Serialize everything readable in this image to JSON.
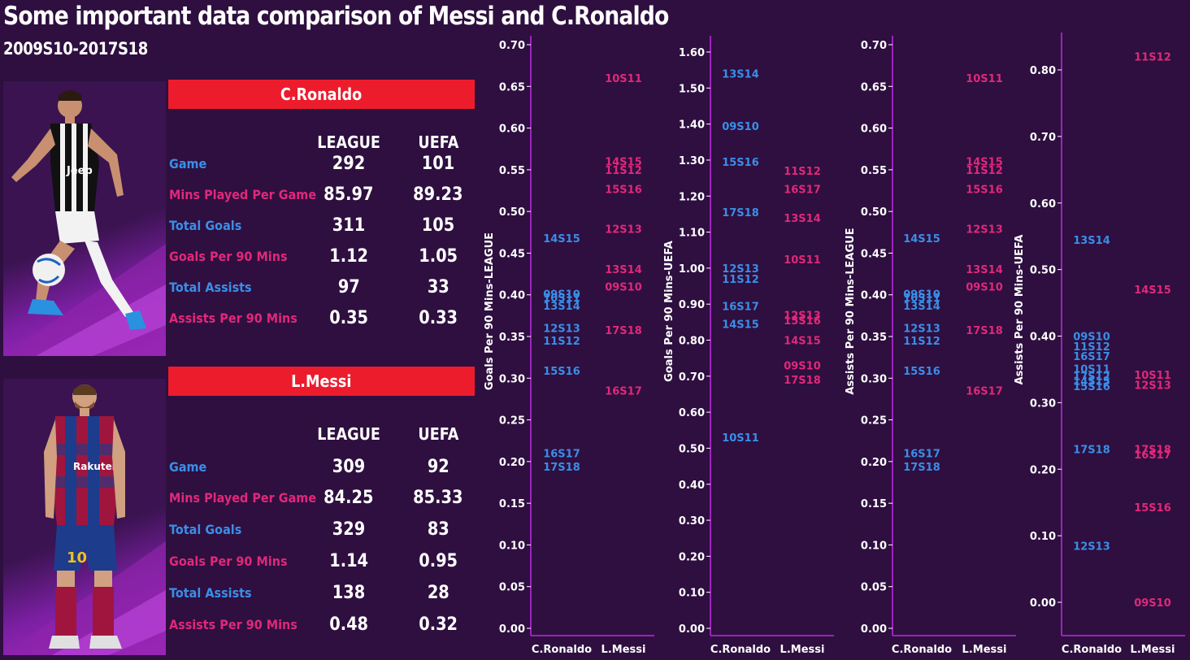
{
  "title": "Some important data comparison of Messi and C.Ronaldo",
  "subtitle": "2009S10-2017S18",
  "colors": {
    "ronaldo": "#3a8ee8",
    "messi": "#e0287a",
    "header_bar": "#ec1c2d",
    "axis": "#a020c0",
    "background": "#2e0f3f"
  },
  "players": [
    {
      "name": "C.Ronaldo",
      "photo_icon": "ronaldo-photo-icon",
      "columns": [
        "LEAGUE",
        "UEFA"
      ],
      "rows": [
        {
          "label": "Game",
          "league": "292",
          "uefa": "101"
        },
        {
          "label": "Mins Played Per Game",
          "league": "85.97",
          "uefa": "89.23"
        },
        {
          "label": "Total Goals",
          "league": "311",
          "uefa": "105"
        },
        {
          "label": "Goals Per 90 Mins",
          "league": "1.12",
          "uefa": "1.05"
        },
        {
          "label": "Total Assists",
          "league": "97",
          "uefa": "33"
        },
        {
          "label": "Assists Per 90 Mins",
          "league": "0.35",
          "uefa": "0.33"
        }
      ]
    },
    {
      "name": "L.Messi",
      "photo_icon": "messi-photo-icon",
      "columns": [
        "LEAGUE",
        "UEFA"
      ],
      "rows": [
        {
          "label": "Game",
          "league": "309",
          "uefa": "92"
        },
        {
          "label": "Mins Played Per Game",
          "league": "84.25",
          "uefa": "85.33"
        },
        {
          "label": "Total Goals",
          "league": "329",
          "uefa": "83"
        },
        {
          "label": "Goals Per 90 Mins",
          "league": "1.14",
          "uefa": "0.95"
        },
        {
          "label": "Total Assists",
          "league": "138",
          "uefa": "28"
        },
        {
          "label": "Assists Per 90 Mins",
          "league": "0.48",
          "uefa": "0.32"
        }
      ]
    }
  ],
  "chart_data": [
    {
      "type": "scatter",
      "ylabel": "Goals Per 90 Mins-LEAGUE",
      "categories": [
        "C.Ronaldo",
        "L.Messi"
      ],
      "ylim": [
        0,
        0.7
      ],
      "yticks": [
        "0.00",
        "0.05",
        "0.10",
        "0.15",
        "0.20",
        "0.25",
        "0.30",
        "0.35",
        "0.40",
        "0.45",
        "0.50",
        "0.55",
        "0.60",
        "0.65",
        "0.70"
      ],
      "series": [
        {
          "values": [
            {
              "label": "14S15",
              "y": 0.468
            },
            {
              "label": "09S10",
              "y": 0.401
            },
            {
              "label": "10S11",
              "y": 0.397
            },
            {
              "label": "13S14",
              "y": 0.387
            },
            {
              "label": "12S13",
              "y": 0.36
            },
            {
              "label": "11S12",
              "y": 0.345
            },
            {
              "label": "15S16",
              "y": 0.309
            },
            {
              "label": "16S17",
              "y": 0.21
            },
            {
              "label": "17S18",
              "y": 0.194
            }
          ]
        },
        {
          "values": [
            {
              "label": "10S11",
              "y": 0.66
            },
            {
              "label": "14S15",
              "y": 0.56
            },
            {
              "label": "11S12",
              "y": 0.55
            },
            {
              "label": "15S16",
              "y": 0.527
            },
            {
              "label": "12S13",
              "y": 0.479
            },
            {
              "label": "13S14",
              "y": 0.431
            },
            {
              "label": "09S10",
              "y": 0.41
            },
            {
              "label": "17S18",
              "y": 0.358
            },
            {
              "label": "16S17",
              "y": 0.285
            }
          ]
        }
      ]
    },
    {
      "type": "scatter",
      "ylabel": "Goals Per 90 Mins-UEFA",
      "categories": [
        "C.Ronaldo",
        "L.Messi"
      ],
      "ylim": [
        0,
        1.6
      ],
      "yticks": [
        "0.00",
        "0.10",
        "0.20",
        "0.30",
        "0.40",
        "0.50",
        "0.60",
        "0.70",
        "0.80",
        "0.90",
        "1.00",
        "1.10",
        "1.20",
        "1.30",
        "1.40",
        "1.50",
        "1.60"
      ],
      "series": [
        {
          "values": [
            {
              "label": "13S14",
              "y": 1.54
            },
            {
              "label": "09S10",
              "y": 1.395
            },
            {
              "label": "15S16",
              "y": 1.295
            },
            {
              "label": "17S18",
              "y": 1.155
            },
            {
              "label": "12S13",
              "y": 1.0
            },
            {
              "label": "11S12",
              "y": 0.97
            },
            {
              "label": "16S17",
              "y": 0.895
            },
            {
              "label": "14S15",
              "y": 0.845
            },
            {
              "label": "10S11",
              "y": 0.53
            }
          ]
        },
        {
          "values": [
            {
              "label": "11S12",
              "y": 1.27
            },
            {
              "label": "16S17",
              "y": 1.22
            },
            {
              "label": "13S14",
              "y": 1.14
            },
            {
              "label": "10S11",
              "y": 1.025
            },
            {
              "label": "12S13",
              "y": 0.87
            },
            {
              "label": "15S16",
              "y": 0.855
            },
            {
              "label": "14S15",
              "y": 0.8
            },
            {
              "label": "09S10",
              "y": 0.73
            },
            {
              "label": "17S18",
              "y": 0.69
            }
          ]
        }
      ]
    },
    {
      "type": "scatter",
      "ylabel": "Assists Per 90 Mins-LEAGUE",
      "categories": [
        "C.Ronaldo",
        "L.Messi"
      ],
      "ylim": [
        0,
        0.7
      ],
      "yticks": [
        "0.00",
        "0.05",
        "0.10",
        "0.15",
        "0.20",
        "0.25",
        "0.30",
        "0.35",
        "0.40",
        "0.45",
        "0.50",
        "0.55",
        "0.60",
        "0.65",
        "0.70"
      ],
      "series": [
        {
          "values": [
            {
              "label": "14S15",
              "y": 0.468
            },
            {
              "label": "09S10",
              "y": 0.401
            },
            {
              "label": "10S11",
              "y": 0.397
            },
            {
              "label": "13S14",
              "y": 0.387
            },
            {
              "label": "12S13",
              "y": 0.36
            },
            {
              "label": "11S12",
              "y": 0.345
            },
            {
              "label": "15S16",
              "y": 0.309
            },
            {
              "label": "16S17",
              "y": 0.21
            },
            {
              "label": "17S18",
              "y": 0.194
            }
          ]
        },
        {
          "values": [
            {
              "label": "10S11",
              "y": 0.66
            },
            {
              "label": "14S15",
              "y": 0.56
            },
            {
              "label": "11S12",
              "y": 0.55
            },
            {
              "label": "15S16",
              "y": 0.527
            },
            {
              "label": "12S13",
              "y": 0.479
            },
            {
              "label": "13S14",
              "y": 0.431
            },
            {
              "label": "09S10",
              "y": 0.41
            },
            {
              "label": "17S18",
              "y": 0.358
            },
            {
              "label": "16S17",
              "y": 0.285
            }
          ]
        }
      ]
    },
    {
      "type": "scatter",
      "ylabel": "Assists Per 90 Mins-UEFA",
      "categories": [
        "C.Ronaldo",
        "L.Messi"
      ],
      "ylim": [
        -0.05,
        0.87
      ],
      "yticks": [
        "0.00",
        "0.10",
        "0.20",
        "0.30",
        "0.40",
        "0.50",
        "0.60",
        "0.70",
        "0.80"
      ],
      "series": [
        {
          "values": [
            {
              "label": "13S14",
              "y": 0.545
            },
            {
              "label": "09S10",
              "y": 0.4
            },
            {
              "label": "11S12",
              "y": 0.385
            },
            {
              "label": "16S17",
              "y": 0.37
            },
            {
              "label": "10S11",
              "y": 0.351
            },
            {
              "label": "17S12",
              "y": 0.34
            },
            {
              "label": "14S15",
              "y": 0.333
            },
            {
              "label": "15S16",
              "y": 0.325
            },
            {
              "label": "17S18",
              "y": 0.23
            },
            {
              "label": "12S13",
              "y": 0.085
            }
          ]
        },
        {
          "values": [
            {
              "label": "11S12",
              "y": 0.82
            },
            {
              "label": "14S15",
              "y": 0.47
            },
            {
              "label": "10S11",
              "y": 0.342
            },
            {
              "label": "12S13",
              "y": 0.327
            },
            {
              "label": "17S18",
              "y": 0.23
            },
            {
              "label": "16S17",
              "y": 0.222
            },
            {
              "label": "15S16",
              "y": 0.143
            },
            {
              "label": "09S10",
              "y": 0.0
            }
          ]
        }
      ]
    }
  ]
}
